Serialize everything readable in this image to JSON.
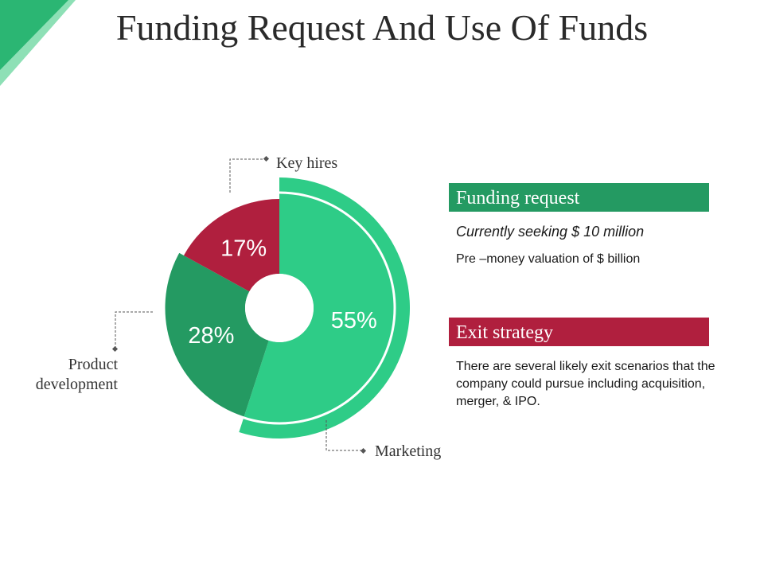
{
  "title": "Funding Request And Use Of Funds",
  "colors": {
    "green_light": "#2ecc87",
    "green_dark": "#249a62",
    "red": "#b01f3e",
    "panel_green": "#249a62",
    "panel_red": "#b01f3e"
  },
  "chart_data": {
    "type": "pie",
    "subtype": "donut",
    "slices": [
      {
        "label": "Marketing",
        "value": 55,
        "display": "55%",
        "color": "#2ecc87"
      },
      {
        "label": "Product development",
        "value": 28,
        "display": "28%",
        "color": "#249a62"
      },
      {
        "label": "Key hires",
        "value": 17,
        "display": "17%",
        "color": "#b01f3e"
      }
    ]
  },
  "callouts": {
    "key_hires": "Key hires",
    "product_line1": "Product",
    "product_line2": "development",
    "marketing": "Marketing"
  },
  "funding": {
    "heading": "Funding request",
    "seeking": "Currently seeking $ 10 million",
    "valuation": "Pre –money valuation of $ billion"
  },
  "exit": {
    "heading": "Exit strategy",
    "text": "There are several likely exit scenarios that the company could pursue including acquisition, merger, & IPO."
  }
}
